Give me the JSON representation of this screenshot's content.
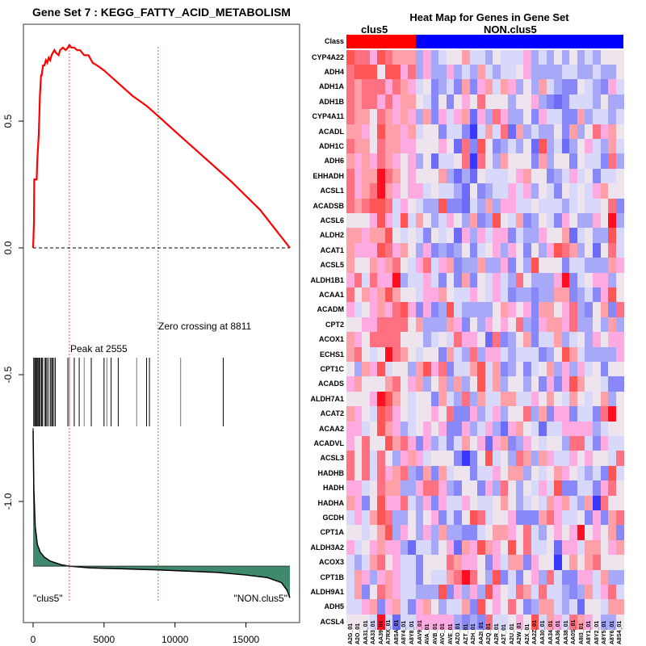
{
  "gsea_plot": {
    "title": "Gene Set  7 : KEGG_FATTY_ACID_METABOLISM",
    "peak_label": "Peak at 2555",
    "zero_label": "Zero crossing at 8811",
    "left_class_label": "\"clus5\"",
    "right_class_label": "\"NON.clus5\"",
    "colors": {
      "es_curve": "#ff0000",
      "peak_line": "#ff4444",
      "zero_line": "#22bb22",
      "ranked_fill": "#3f8a6c"
    }
  },
  "chart_data": [
    {
      "type": "line",
      "title": "Gene Set  7 : KEGG_FATTY_ACID_METABOLISM",
      "xlabel": "",
      "ylabel": "",
      "xlim": [
        0,
        18100
      ],
      "ylim": [
        -1.38,
        0.82
      ],
      "x_ticks": [
        "0",
        "5000",
        "10000",
        "15000"
      ],
      "x_tick_values": [
        0,
        5000,
        10000,
        15000
      ],
      "y_ticks": [
        "0.0",
        "0.5",
        "-0.5",
        "-1.0"
      ],
      "y_tick_values": [
        0.0,
        0.5,
        -0.5,
        -1.0
      ],
      "series": [
        {
          "name": "running enrichment score",
          "x": [
            0,
            60,
            80,
            250,
            300,
            400,
            480,
            560,
            600,
            700,
            800,
            900,
            1000,
            1100,
            1200,
            1300,
            1400,
            1500,
            1600,
            1800,
            1900,
            2100,
            2300,
            2450,
            2555,
            2700,
            2900,
            3100,
            3300,
            3600,
            3900,
            4200,
            4500,
            5000,
            6000,
            7000,
            8000,
            8811,
            10000,
            12000,
            14000,
            16000,
            18100
          ],
          "y": [
            0.0,
            0.1,
            0.27,
            0.27,
            0.35,
            0.45,
            0.6,
            0.68,
            0.68,
            0.72,
            0.72,
            0.74,
            0.73,
            0.75,
            0.74,
            0.76,
            0.77,
            0.78,
            0.77,
            0.76,
            0.78,
            0.79,
            0.78,
            0.79,
            0.8,
            0.79,
            0.79,
            0.78,
            0.78,
            0.76,
            0.76,
            0.73,
            0.72,
            0.7,
            0.65,
            0.6,
            0.56,
            0.52,
            0.46,
            0.36,
            0.26,
            0.15,
            0.0
          ]
        },
        {
          "name": "ranked list metric (scaled)",
          "x": [
            0,
            50,
            150,
            300,
            500,
            800,
            1200,
            2000,
            2555,
            4000,
            6000,
            8811,
            11000,
            13000,
            15000,
            16500,
            17500,
            17900,
            18100
          ],
          "y": [
            -0.72,
            -0.95,
            -1.1,
            -1.17,
            -1.2,
            -1.22,
            -1.235,
            -1.25,
            -1.255,
            -1.262,
            -1.265,
            -1.27,
            -1.275,
            -1.28,
            -1.29,
            -1.3,
            -1.32,
            -1.35,
            -1.38
          ]
        }
      ],
      "hit_positions": [
        40,
        90,
        130,
        170,
        210,
        250,
        300,
        340,
        400,
        460,
        520,
        600,
        650,
        760,
        860,
        910,
        960,
        1050,
        1200,
        1260,
        1320,
        1400,
        1480,
        1560,
        2450,
        2560,
        2900,
        3250,
        3600,
        4100,
        5000,
        5200,
        5500,
        6000,
        7300,
        8000,
        8200,
        10400,
        13400
      ],
      "annotations": [
        "Peak at 2555",
        "Zero crossing at 8811",
        "\"clus5\"",
        "\"NON.clus5\""
      ],
      "peak_x": 2555,
      "zero_crossing_x": 8811,
      "baseline_y": 0.0
    },
    {
      "type": "heatmap",
      "title": "Heat Map for Genes in Gene Set",
      "groups": [
        {
          "name": "clus5",
          "count": 9,
          "color": "#ff0000"
        },
        {
          "name": "NON.clus5",
          "count": 27,
          "color": "#0000ff"
        }
      ],
      "class_row_label": "Class",
      "columns": [
        "A2G_01",
        "A2O_01",
        "AA31_01",
        "AA33_01",
        "AA39_01",
        "A7RX_01",
        "A8SA_01",
        "A8Y4_01",
        "A8Y8_01",
        "AAV9_01",
        "AVA_01",
        "AVB_01",
        "AVC_01",
        "AVE_01",
        "AZO_01",
        "AZT_01",
        "A2H_01",
        "AA2I_01",
        "A2Q_01",
        "A2R_01",
        "A2T_01",
        "A2U_01",
        "A2W_01",
        "A2X_01",
        "AA2Z_01",
        "AA30_01",
        "AA34_01",
        "AA36_01",
        "AA38_01",
        "AA0S_01",
        "A8I3_01",
        "A8Y1_01",
        "A8Y2_01",
        "A8Y5_01",
        "A8Y6_01",
        "A8S4_01"
      ],
      "rows": [
        "CYP4A22",
        "ADH4",
        "ADH1A",
        "ADH1B",
        "CYP4A11",
        "ACADL",
        "ADH1C",
        "ADH6",
        "EHHADH",
        "ACSL1",
        "ACADSB",
        "ACSL6",
        "ALDH2",
        "ACAT1",
        "ACSL5",
        "ALDH1B1",
        "ACAA1",
        "ACADM",
        "CPT2",
        "ACOX1",
        "ECHS1",
        "CPT1C",
        "ACADS",
        "ALDH7A1",
        "ACAT2",
        "ACAA2",
        "ACADVL",
        "ACSL3",
        "HADHB",
        "HADH",
        "HADHA",
        "GCDH",
        "CPT1A",
        "ALDH3A2",
        "ACOX3",
        "CPT1B",
        "ALDH9A1",
        "ADH5",
        "ACSL4"
      ],
      "value_scale": "levels -4 (deep blue) .. +4 (deep red); 0.5 = pink",
      "values_encoded": [
        "322P32111 -2P-2-1001-1-1-20-1-1-1P-2-1-20-20-2-1-2",
        "2333033P2 -2P-2-2P-2-1-21-1-2-1-10P-2-2-2-2-1-1-2-2-1-2-20",
        "21222P21P -1,0,-3,-2,-1,-3,1,-3,P,1,-1,1,P,-2,0,-2,1,-1,-2,-3,-3,0,-1,-2,-3,P,-1",
        "2122P2P11 0,-1,-3,0,-3,0,P,0,2,0,0,0,-2,0,0,P,-2,-3,-4,-3,-1,-1,-1,-2,0,-2,-2",
        "211021P1P -2,1,-3,P,-1,P,1,-4,P,-2,2,P,-2,-2,0,-3,P,-1,-1,-3,-3,1,-2,-1,-1,-2,-1",
        "11P0311P1 -1,0,0,-3,-1,-1,-3,-5,-1,1,-1,2,-4,1,-2,-1,-2,-2,0,-3,1,-2,0,2,P,1,0",
        "2110211PP 0,0,0,P,0,-4,2,-3,3,0,-3,-2,-1,-2,0,-4,3,-2,-1,-4,-2,0,P,-1,-2,1,-1",
        "1P1P21P0P -2,0,-4,-1,-1,0,2,-5,2,0,-2,1,0,0,0,-3,1,-2,0,0,-3,0,-1,-1,-3,2,-2",
        "2P114210P 0,0,0,1,-2,-4,-2,-4,0,-1,-1,-1,0,P,1,0,0,-3,-2,-1,P,-1,0,-3,-1,-1,0",
        "2P1241P0P P,-1,0,-1,-1,-2,-4,0,-3,-2,-1,-1,P,-1,P,-2,0,-1,-3,0,-1,0,-1,P,1,0,0",
        "212332-1P0 -1,-2,-2,3,-3,-3,-4,-1,-2,1,-2,P,P,-1,-1,0,-1,-1,-1,-2,-1,0,-1,-1,0,2,-3",
        "000P3P-13-1 1,0,-2,-1,P,0,-2,1,-3,-2,3,0,-1,1,-3,-2,0,-1,-3,P,0,-2,-2,P,0,4,-2",
        "11P1130-10 -1,-3,0,-1,0,-4,P,-2,P,-1,P,P,-3,-1,-2,-2,P,0,0,1,-4,-1,0,-2,-2,3,-1",
        "1PPP32P10 -2,P,-3,-2,-3,-2,0,-3,-1,0,P,-2,P,0,-3,0,-2,P,3,2,1,-2,0,-4,0,2,-1",
        "1001P120-1 P,2,-1,P,1,-3,-2,-2,1,-2,-2,P,-3,0,-2,3,0,0,0,-3,-1,-1,-2,-2,-2,1,P",
        "P2-12PP4-2 -1,-1,P,-1,-3,0,-3,1,-3,0,-1,P,-1,-2,2,0,-2,-2,-2,P,4,-3,-1,0,P,P,-2",
        "201P1310 0,-1,P,P,1,0,-1,-1,P,0,-1,P,-1,-3,-2,-2,-3,-2,-2,1,1,-3,-2,-1,-3,P,3",
        "P-10P1P23P -3,P,-3,-2,3,-1,-2,-2,-2,-2,0,1,P,0,P,-3,1,1,0,P,2,-2,-3,0,1,-3,2",
        "00PP22220 1,-2,-2,-2,1,P,-3,0,-2,P,0,P,0,2,-2,-3,P,1,1,P,2,-2,-2,0,-2,1,-2",
        "1P02222000 -2,-1,0,-1,2,P,P,0,-4,2,-3,-2,0,1,-3,-1,-1,1,-2,-1,0,-2,P,0,P,P,-2",
        "120-1 0 4 2 1 0 -1 0 0 -3 1 -1 -2 2 -2 P P -1 -2 -1 -1 -1 -3 -2 0 3 1 -1 -2 -2 -2 -2 P",
        "0-21P3-100 -2,1,3,P,2,-3,-1,-1,1,3,-1,1,-3,-2,0,-3,-1,0,1,-2,P,-2,P,-1,0,-3,0",
        "P1000120P 1,-2,0,1,-2,1,-2,0,3,-1,1,-2,0,0,-2,0,-3,P,-3,P,3,1,0,0,-1,-3,-3",
        "000P4310 -1,0,0,-3,1,-1,-2,2,-2,1,-1,-1,1,1,-1,-1,P,0,1,0,-1,1,0,-1,0,1,-2",
        "1P0-132P0 -1,0,0,P,0,2,-3,-3,P,-2,-1,P,-2,0,0,2,-2,1,-3,P,P,-3,-1,-1,-3,2,4",
        "PP-10 3 1 P-2 -1 0 P 0 P -3 -3 P -2 -1 P -2 -4 P 1 0 -1 -4 -1 -1 P P P P -2 -1 0 0 3 -1",
        "P02003 1 2 P -3 P -2 -1 -3 -1 1 0 P -4 P 1 -3 -2 P 0 -1 0 0 -2 2 2 -1 -3 P -1 -1 0 3 -3",
        "202 -1 2 0 -2 P 1 P -1 0 0 0 -3 -5 -3 0 3 -1 0 -2 2 1 -2 1 P -1 -1 P 0 P 0 0 -1 2",
        "202-1 2 P 1 2 -2 -3 1 -3 1 -1 0 0 -3 -1 -1 P 0 1 1 -2 0 -1 0 1 P 0 -1 -2 -1 -3 3 -1",
        "PP -1 0 2 1 1 -2 -2 P 2 2 P -2 -3 0 0 -3 P -2 2 0 -2 0 -1 P -1 3 -3 -3 -1 -1 -3 P 2 0",
        "1P-3 0 3 P P 2 -1 -2 P -3 P -1 -1 P 0 -1 -1 0 1 0 -2 -1 0 -1 1 P 1 -1 -2 1 -5 2 0",
        "-1P-1 1 3 2 -2 -2 0 -2 0 P -3 -1 -3 0 3 2 -1 0 0 P -3 -3 -3 1 2 P -1 -1 0 -3 P -3 1 2",
        "00-10 1 3 -2 P 0 -2 P -2 1 -2 -2 -3 -3 -1 0 1 1 P 0 2 -1 -2 0 P 0 P 4 0 P 0 1 -3",
        "P-10 P 1 P P -2 -4 -1 -1 -2 0 P -4 1 P 3 1 P 0 3 0 2 -1 -1 0 -4 P P -1 1 1 0 P 1",
        "-1-2-1 1 2 0 P -1 -1 -3 0 0 0 2 1 P P 0 -3 P -1 1 1 -3 P 0 0 -5 0 1 0 1 2",
        "-11P -2 P 1 P -1 -1 -3 0 -1 -1 1 2 4 2 0 -2 3 -3 -1 -3 0 P -2 2 -1 -3 -3 P P -1 1 -2 -2",
        "-11-30 2 1 P -1 -1 -2 -2 -2 3 -3 P -2 P -2 3 P 0 -1 2 1 -1 2 -1 -1 -2 -3 -2 1 -1 P 2 -1",
        "-1-1P 1 -3 P 1 -1 -3 P 1 0 -2 -1 -1 1 -3 3 0 P 0 2 0 -3 -2 1 1 -1 -2 -1 -4 0 0 -1 1 1 1",
        "000-1 4 -1 -4 -1 -1 P P P P P -2 -3 -2 -3 2 -1 -1 0 P 0 3 -1 1 P -1 2 1 P 0 -2 -2 0 1"
      ]
    }
  ]
}
